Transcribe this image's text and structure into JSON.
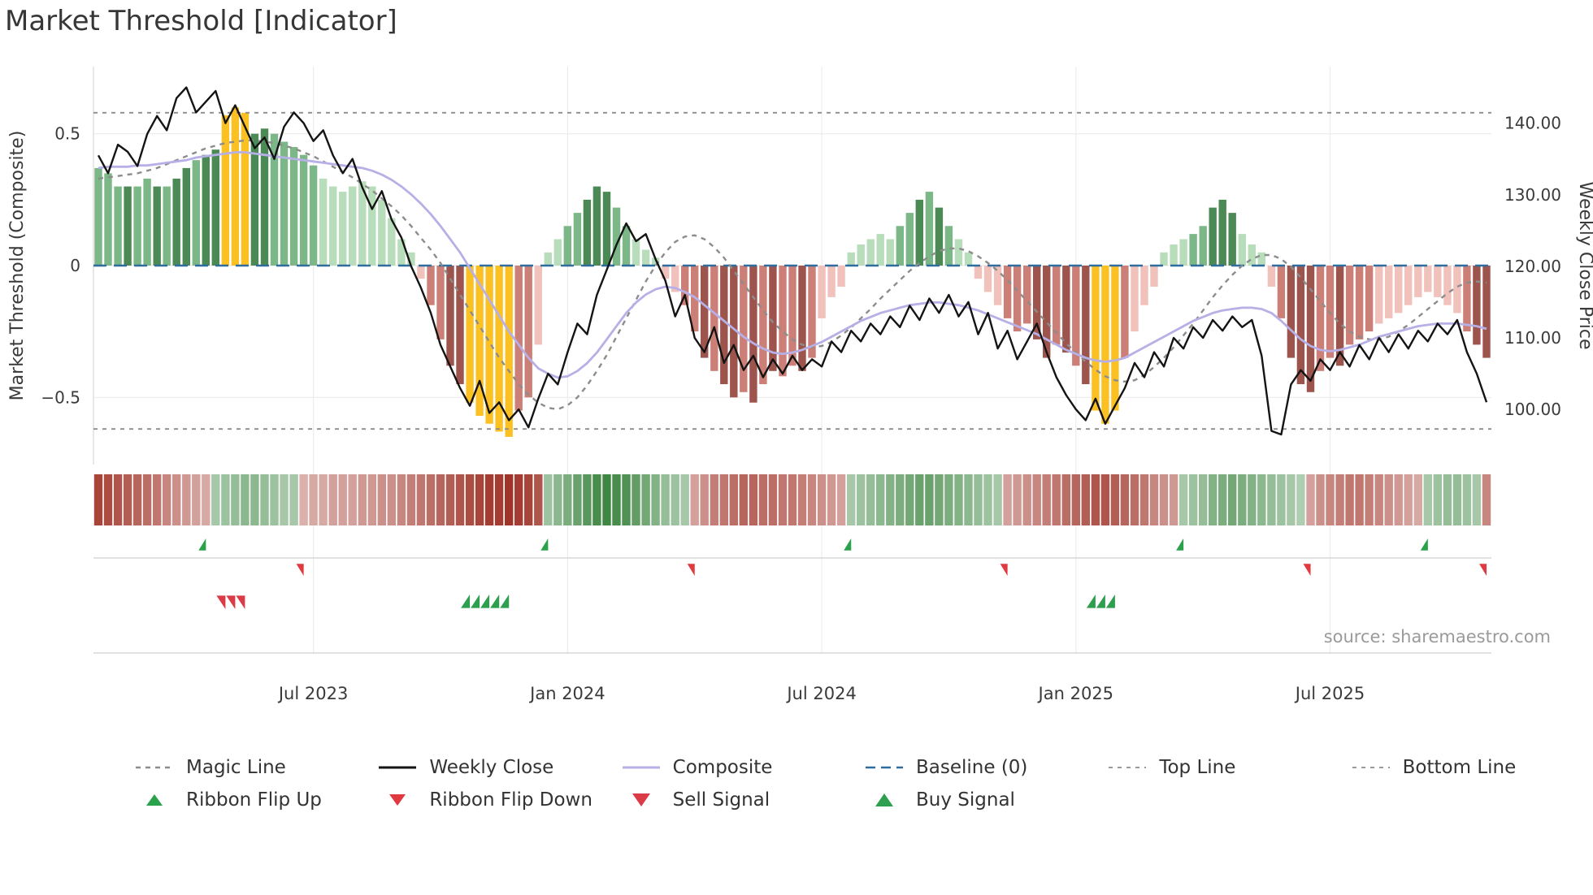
{
  "title": "Market Threshold [Indicator]",
  "source": "source: sharemaestro.com",
  "colors": {
    "bar_palette": {
      "g1": "#b8ddba",
      "g2": "#7cb787",
      "g3": "#4c8a55",
      "y": "#fbc123",
      "r1": "#f1c2bc",
      "r2": "#cb7f76",
      "r3": "#9c544d"
    },
    "weekly_close": "#141414",
    "composite": "#b7b0e6",
    "magic_line": "#8c8c8c",
    "baseline": "#2e6da0",
    "top_bottom": "#8c8c8c",
    "flip_up": "#2aa14b",
    "flip_down": "#e03a40",
    "buy": "#2e9e4f",
    "sell": "#da3b47",
    "ribbon_green": "#2e7d33",
    "ribbon_red": "#a03428",
    "grid": "#ececec",
    "axis_text": "#3a3a3a",
    "muted_text": "#9a9a9a"
  },
  "legend": {
    "magic_line": "Magic Line",
    "weekly_close": "Weekly Close",
    "composite": "Composite",
    "baseline": "Baseline (0)",
    "top_line": "Top Line",
    "bottom_line": "Bottom Line",
    "ribbon_flip_up": "Ribbon Flip Up",
    "ribbon_flip_down": "Ribbon Flip Down",
    "sell_signal": "Sell Signal",
    "buy_signal": "Buy Signal"
  },
  "chart_data": {
    "type": "mixed",
    "title": "Market Threshold [Indicator]",
    "x": {
      "unit": "week",
      "n": 143,
      "ticks": [
        {
          "index": 22,
          "label": "Jul 2023"
        },
        {
          "index": 48,
          "label": "Jan 2024"
        },
        {
          "index": 74,
          "label": "Jul 2024"
        },
        {
          "index": 100,
          "label": "Jan 2025"
        },
        {
          "index": 126,
          "label": "Jul 2025"
        }
      ]
    },
    "left_axis": {
      "title": "Market Threshold (Composite)",
      "domain": [
        -0.755,
        0.755
      ],
      "ticks": [
        {
          "v": 0.5,
          "label": "0.5"
        },
        {
          "v": 0,
          "label": "0"
        },
        {
          "v": -0.5,
          "label": "−0.5"
        }
      ]
    },
    "right_axis": {
      "title": "Weekly Close Price",
      "domain": [
        92.3,
        147.9
      ],
      "ticks": [
        {
          "v": 140,
          "label": "140.00"
        },
        {
          "v": 130,
          "label": "130.00"
        },
        {
          "v": 120,
          "label": "120.00"
        },
        {
          "v": 110,
          "label": "110.00"
        },
        {
          "v": 100,
          "label": "100.00"
        }
      ]
    },
    "reference_lines": {
      "baseline": 0,
      "top_line": 0.58,
      "bottom_line": -0.62
    },
    "bars": {
      "values": [
        0.37,
        0.35,
        0.3,
        0.3,
        0.3,
        0.33,
        0.3,
        0.3,
        0.33,
        0.37,
        0.4,
        0.42,
        0.44,
        0.57,
        0.6,
        0.58,
        0.5,
        0.52,
        0.5,
        0.47,
        0.45,
        0.42,
        0.38,
        0.33,
        0.3,
        0.28,
        0.3,
        0.32,
        0.3,
        0.25,
        0.18,
        0.1,
        0.05,
        -0.05,
        -0.15,
        -0.28,
        -0.38,
        -0.45,
        -0.52,
        -0.57,
        -0.6,
        -0.63,
        -0.65,
        -0.55,
        -0.5,
        -0.3,
        0.05,
        0.1,
        0.15,
        0.2,
        0.25,
        0.3,
        0.28,
        0.22,
        0.15,
        0.1,
        0.06,
        0.03,
        -0.05,
        -0.1,
        -0.15,
        -0.25,
        -0.35,
        -0.4,
        -0.45,
        -0.5,
        -0.48,
        -0.52,
        -0.45,
        -0.4,
        -0.42,
        -0.38,
        -0.4,
        -0.35,
        -0.2,
        -0.12,
        -0.08,
        0.05,
        0.08,
        0.1,
        0.12,
        0.1,
        0.15,
        0.2,
        0.25,
        0.28,
        0.22,
        0.15,
        0.1,
        0.05,
        -0.05,
        -0.1,
        -0.15,
        -0.2,
        -0.25,
        -0.22,
        -0.28,
        -0.35,
        -0.3,
        -0.33,
        -0.38,
        -0.45,
        -0.55,
        -0.6,
        -0.55,
        -0.35,
        -0.25,
        -0.15,
        -0.08,
        0.05,
        0.08,
        0.1,
        0.12,
        0.15,
        0.22,
        0.25,
        0.2,
        0.12,
        0.08,
        0.05,
        -0.08,
        -0.2,
        -0.35,
        -0.45,
        -0.48,
        -0.4,
        -0.35,
        -0.38,
        -0.3,
        -0.28,
        -0.25,
        -0.22,
        -0.2,
        -0.18,
        -0.15,
        -0.12,
        -0.1,
        -0.12,
        -0.15,
        -0.18,
        -0.25,
        -0.3,
        -0.35
      ],
      "colors": [
        "g2",
        "g2",
        "g2",
        "g3",
        "g2",
        "g2",
        "g3",
        "g2",
        "g3",
        "g3",
        "g2",
        "g3",
        "g3",
        "y",
        "y",
        "y",
        "g3",
        "g3",
        "g2",
        "g2",
        "g2",
        "g2",
        "g2",
        "g1",
        "g1",
        "g1",
        "g1",
        "g1",
        "g1",
        "g1",
        "g1",
        "g1",
        "g1",
        "r1",
        "r2",
        "r2",
        "r3",
        "r3",
        "y",
        "y",
        "y",
        "y",
        "y",
        "r2",
        "r2",
        "r1",
        "g1",
        "g1",
        "g2",
        "g2",
        "g3",
        "g3",
        "g3",
        "g2",
        "g2",
        "g1",
        "g1",
        "g1",
        "r1",
        "r1",
        "r2",
        "r2",
        "r3",
        "r2",
        "r3",
        "r3",
        "r2",
        "r3",
        "r2",
        "r3",
        "r2",
        "r2",
        "r3",
        "r2",
        "r1",
        "r1",
        "r1",
        "g1",
        "g1",
        "g1",
        "g1",
        "g1",
        "g2",
        "g2",
        "g3",
        "g2",
        "g3",
        "g2",
        "g1",
        "g1",
        "r1",
        "r1",
        "r1",
        "r2",
        "r2",
        "r2",
        "r3",
        "r3",
        "r2",
        "r3",
        "r2",
        "r3",
        "y",
        "y",
        "y",
        "r2",
        "r1",
        "r1",
        "r1",
        "g1",
        "g1",
        "g1",
        "g2",
        "g2",
        "g3",
        "g3",
        "g3",
        "g1",
        "g1",
        "g1",
        "r1",
        "r2",
        "r3",
        "r3",
        "r3",
        "r2",
        "r2",
        "r3",
        "r2",
        "r2",
        "r2",
        "r1",
        "r1",
        "r1",
        "r1",
        "r1",
        "r1",
        "r1",
        "r1",
        "r1",
        "r2",
        "r3",
        "r3"
      ]
    },
    "series": {
      "weekly_close": [
        135.5,
        133.0,
        137.0,
        136.0,
        134.0,
        138.5,
        141.0,
        139.0,
        143.5,
        145.0,
        141.5,
        143.0,
        144.5,
        140.0,
        142.5,
        139.5,
        136.5,
        138.0,
        135.0,
        139.5,
        141.5,
        140.0,
        137.5,
        139.0,
        135.5,
        133.0,
        135.0,
        131.0,
        128.0,
        130.5,
        126.5,
        124.0,
        120.0,
        117.0,
        113.5,
        109.0,
        106.0,
        103.0,
        100.5,
        104.0,
        99.5,
        101.0,
        98.5,
        100.0,
        97.5,
        101.5,
        105.0,
        103.5,
        108.0,
        112.0,
        110.5,
        116.0,
        119.5,
        123.0,
        126.0,
        123.5,
        124.5,
        121.0,
        118.0,
        113.0,
        116.0,
        110.0,
        108.0,
        111.5,
        106.5,
        109.0,
        105.5,
        107.5,
        104.5,
        107.0,
        105.0,
        107.5,
        105.5,
        107.0,
        106.0,
        109.5,
        108.0,
        111.0,
        109.5,
        112.0,
        110.5,
        113.0,
        111.5,
        114.5,
        112.5,
        115.5,
        113.5,
        116.0,
        113.0,
        115.0,
        110.5,
        113.5,
        108.5,
        111.0,
        107.0,
        109.5,
        112.0,
        108.0,
        104.5,
        102.0,
        100.0,
        98.5,
        101.5,
        98.0,
        100.5,
        103.0,
        106.5,
        104.5,
        108.0,
        106.0,
        110.0,
        108.5,
        111.5,
        110.0,
        112.5,
        111.0,
        113.0,
        111.5,
        112.5,
        107.5,
        97.0,
        96.5,
        103.5,
        105.5,
        104.0,
        107.0,
        105.5,
        108.0,
        106.0,
        109.0,
        107.0,
        110.0,
        108.0,
        110.5,
        108.5,
        111.0,
        109.5,
        112.0,
        110.5,
        112.5,
        108.0,
        105.0,
        101.0
      ],
      "composite_line": [
        0.37,
        0.375,
        0.375,
        0.375,
        0.38,
        0.38,
        0.385,
        0.39,
        0.395,
        0.4,
        0.41,
        0.415,
        0.42,
        0.425,
        0.43,
        0.43,
        0.425,
        0.42,
        0.415,
        0.41,
        0.405,
        0.4,
        0.395,
        0.39,
        0.385,
        0.38,
        0.375,
        0.37,
        0.36,
        0.345,
        0.325,
        0.3,
        0.27,
        0.235,
        0.195,
        0.15,
        0.1,
        0.05,
        -0.01,
        -0.07,
        -0.13,
        -0.19,
        -0.25,
        -0.3,
        -0.35,
        -0.39,
        -0.41,
        -0.425,
        -0.42,
        -0.4,
        -0.37,
        -0.33,
        -0.28,
        -0.23,
        -0.18,
        -0.14,
        -0.11,
        -0.09,
        -0.08,
        -0.085,
        -0.1,
        -0.12,
        -0.15,
        -0.18,
        -0.21,
        -0.24,
        -0.27,
        -0.295,
        -0.315,
        -0.33,
        -0.335,
        -0.33,
        -0.32,
        -0.305,
        -0.29,
        -0.27,
        -0.25,
        -0.23,
        -0.21,
        -0.195,
        -0.18,
        -0.17,
        -0.16,
        -0.15,
        -0.145,
        -0.14,
        -0.14,
        -0.145,
        -0.15,
        -0.16,
        -0.17,
        -0.185,
        -0.2,
        -0.215,
        -0.23,
        -0.245,
        -0.26,
        -0.28,
        -0.3,
        -0.32,
        -0.335,
        -0.35,
        -0.36,
        -0.365,
        -0.36,
        -0.35,
        -0.33,
        -0.31,
        -0.29,
        -0.27,
        -0.25,
        -0.23,
        -0.21,
        -0.195,
        -0.18,
        -0.17,
        -0.165,
        -0.16,
        -0.16,
        -0.165,
        -0.18,
        -0.21,
        -0.245,
        -0.28,
        -0.305,
        -0.32,
        -0.325,
        -0.32,
        -0.31,
        -0.3,
        -0.285,
        -0.27,
        -0.26,
        -0.25,
        -0.24,
        -0.23,
        -0.225,
        -0.22,
        -0.22,
        -0.22,
        -0.225,
        -0.23,
        -0.24
      ],
      "magic_line": [
        0.33,
        0.335,
        0.34,
        0.345,
        0.35,
        0.36,
        0.37,
        0.385,
        0.4,
        0.415,
        0.43,
        0.445,
        0.455,
        0.465,
        0.47,
        0.475,
        0.475,
        0.47,
        0.465,
        0.455,
        0.445,
        0.43,
        0.415,
        0.395,
        0.375,
        0.355,
        0.335,
        0.31,
        0.285,
        0.255,
        0.225,
        0.19,
        0.15,
        0.105,
        0.06,
        0.01,
        -0.05,
        -0.11,
        -0.17,
        -0.23,
        -0.29,
        -0.35,
        -0.4,
        -0.45,
        -0.49,
        -0.52,
        -0.54,
        -0.545,
        -0.53,
        -0.5,
        -0.455,
        -0.4,
        -0.34,
        -0.27,
        -0.2,
        -0.13,
        -0.06,
        0.0,
        0.05,
        0.09,
        0.11,
        0.115,
        0.1,
        0.07,
        0.03,
        -0.02,
        -0.07,
        -0.12,
        -0.17,
        -0.215,
        -0.25,
        -0.28,
        -0.3,
        -0.31,
        -0.305,
        -0.29,
        -0.265,
        -0.235,
        -0.2,
        -0.165,
        -0.125,
        -0.09,
        -0.055,
        -0.02,
        0.01,
        0.035,
        0.055,
        0.065,
        0.065,
        0.055,
        0.035,
        0.01,
        -0.02,
        -0.055,
        -0.095,
        -0.135,
        -0.175,
        -0.215,
        -0.255,
        -0.295,
        -0.33,
        -0.365,
        -0.395,
        -0.42,
        -0.435,
        -0.44,
        -0.435,
        -0.415,
        -0.385,
        -0.35,
        -0.31,
        -0.265,
        -0.22,
        -0.17,
        -0.12,
        -0.075,
        -0.035,
        0.0,
        0.025,
        0.04,
        0.04,
        0.025,
        -0.005,
        -0.045,
        -0.09,
        -0.135,
        -0.18,
        -0.22,
        -0.25,
        -0.27,
        -0.28,
        -0.28,
        -0.27,
        -0.25,
        -0.225,
        -0.195,
        -0.165,
        -0.135,
        -0.105,
        -0.08,
        -0.065,
        -0.06,
        -0.065
      ]
    },
    "ribbon": [
      -0.9,
      -0.85,
      -0.8,
      -0.75,
      -0.7,
      -0.65,
      -0.6,
      -0.5,
      -0.45,
      -0.4,
      -0.35,
      -0.3,
      0.3,
      0.35,
      0.4,
      0.45,
      0.45,
      0.4,
      0.35,
      0.3,
      0.3,
      -0.25,
      -0.3,
      -0.3,
      -0.35,
      -0.35,
      -0.35,
      -0.4,
      -0.4,
      -0.45,
      -0.45,
      -0.5,
      -0.55,
      -0.6,
      -0.65,
      -0.7,
      -0.75,
      -0.8,
      -0.85,
      -0.9,
      -0.95,
      -0.95,
      -1.0,
      -0.95,
      -0.9,
      -0.8,
      0.35,
      0.45,
      0.55,
      0.65,
      0.75,
      0.85,
      0.9,
      0.85,
      0.8,
      0.7,
      0.6,
      0.5,
      0.4,
      0.35,
      0.3,
      -0.35,
      -0.45,
      -0.55,
      -0.6,
      -0.65,
      -0.7,
      -0.7,
      -0.65,
      -0.65,
      -0.6,
      -0.6,
      -0.55,
      -0.5,
      -0.45,
      -0.4,
      -0.35,
      0.3,
      0.35,
      0.4,
      0.45,
      0.5,
      0.55,
      0.6,
      0.65,
      0.65,
      0.6,
      0.55,
      0.5,
      0.45,
      0.4,
      0.35,
      0.3,
      -0.35,
      -0.4,
      -0.45,
      -0.5,
      -0.55,
      -0.6,
      -0.65,
      -0.7,
      -0.75,
      -0.8,
      -0.8,
      -0.75,
      -0.7,
      -0.65,
      -0.6,
      -0.5,
      -0.45,
      -0.4,
      0.3,
      0.35,
      0.4,
      0.5,
      0.55,
      0.6,
      0.55,
      0.5,
      0.45,
      0.4,
      0.35,
      0.3,
      0.25,
      -0.35,
      -0.45,
      -0.5,
      -0.55,
      -0.6,
      -0.6,
      -0.55,
      -0.5,
      -0.45,
      -0.4,
      -0.35,
      -0.3,
      0.3,
      0.35,
      0.4,
      0.4,
      0.35,
      0.3,
      -0.5
    ],
    "signals": {
      "ribbon_flip_up_weeks": [
        11,
        46,
        77,
        111,
        136
      ],
      "ribbon_flip_down_weeks": [
        21,
        61,
        93,
        124,
        142
      ],
      "buy_signal_weeks": [
        38,
        39,
        40,
        41,
        42,
        102,
        103,
        104
      ],
      "sell_signal_weeks": [
        13,
        14,
        15
      ]
    }
  }
}
